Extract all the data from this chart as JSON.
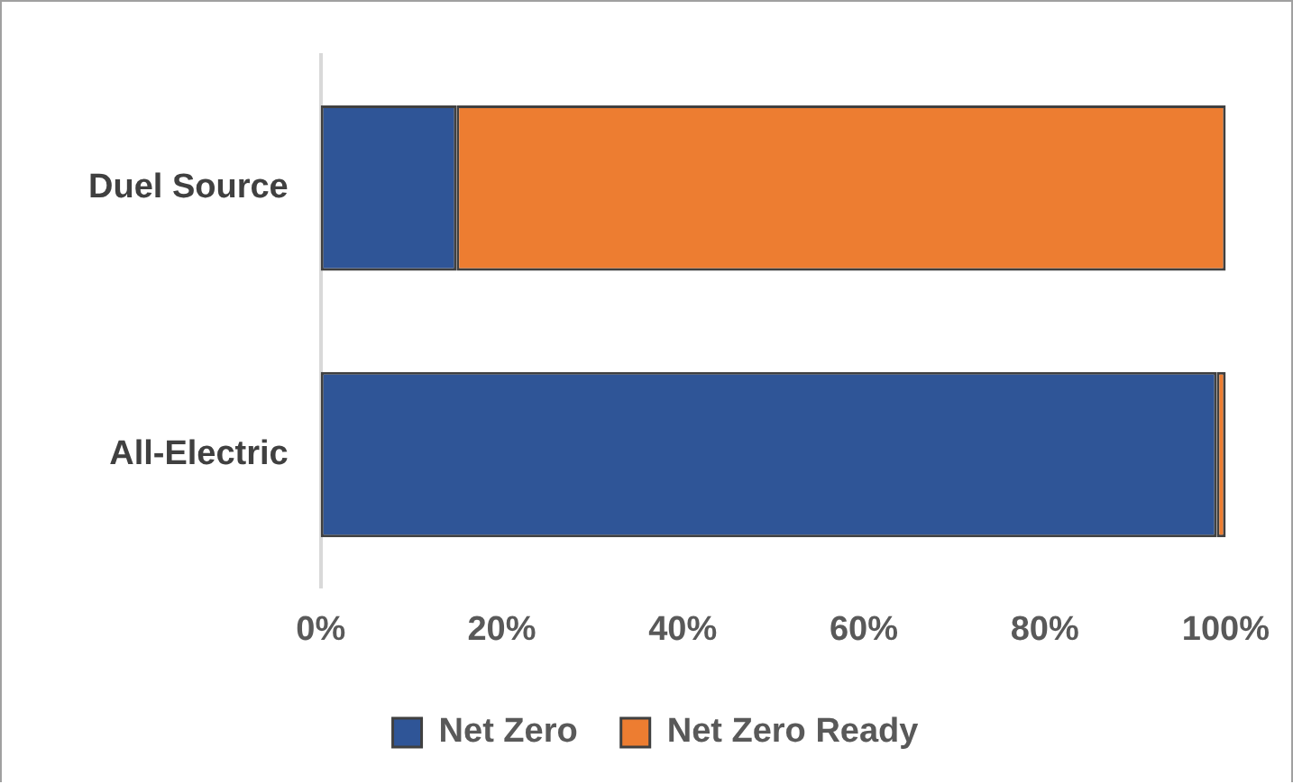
{
  "chart_data": {
    "type": "bar",
    "orientation": "horizontal",
    "stacked": true,
    "categories": [
      "Duel Source",
      "All-Electric"
    ],
    "series": [
      {
        "name": "Net Zero",
        "color": "#2f5597",
        "values": [
          15,
          99
        ]
      },
      {
        "name": "Net Zero Ready",
        "color": "#ed7d31",
        "values": [
          85,
          1
        ]
      }
    ],
    "xlim": [
      0,
      100
    ],
    "xticks": [
      {
        "value": 0,
        "label": "0%"
      },
      {
        "value": 20,
        "label": "20%"
      },
      {
        "value": 40,
        "label": "40%"
      },
      {
        "value": 60,
        "label": "60%"
      },
      {
        "value": 80,
        "label": "80%"
      },
      {
        "value": 100,
        "label": "100%"
      }
    ],
    "grid": false,
    "legend": "bottom"
  }
}
